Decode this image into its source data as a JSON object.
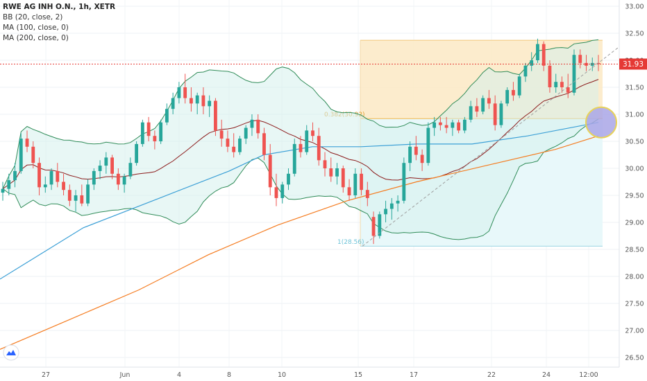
{
  "legend": {
    "title": "RWE AG INH O.N., 1h, XETR",
    "indicators": [
      "BB (20, close, 2)",
      "MA (100, close, 0)",
      "MA (200, close, 0)"
    ]
  },
  "chart_data": {
    "type": "candlestick",
    "price_axis": {
      "ylim": [
        26.4,
        33.1
      ],
      "ticks": [
        "26.50",
        "27.00",
        "27.50",
        "28.00",
        "28.50",
        "29.00",
        "29.50",
        "30.00",
        "30.50",
        "31.00",
        "31.50",
        "32.00",
        "32.50",
        "33.00"
      ],
      "last_price_label": "31.93"
    },
    "time_axis": {
      "ticks": [
        "27",
        "Jun",
        "4",
        "8",
        "10",
        "15",
        "17",
        "22",
        "24",
        "12:00"
      ]
    },
    "fibonacci": {
      "level_0382_label": "0.382(30.92)",
      "level_1_label": "1(28.56)"
    },
    "colors": {
      "up": "#26a69a",
      "down": "#ef5350",
      "bollinger": "#2e8b57",
      "ma20": "#8b1a1a",
      "ma100": "#3a9fd6",
      "ma200": "#f57c20",
      "fib_upper_fill": "#fbe9c4",
      "fib_lower_fill": "#e6f7f9",
      "last_price": "#e53935"
    },
    "candles": [
      {
        "o": 29.55,
        "h": 29.75,
        "l": 29.4,
        "c": 29.62
      },
      {
        "o": 29.62,
        "h": 29.9,
        "l": 29.5,
        "c": 29.78
      },
      {
        "o": 29.78,
        "h": 30.1,
        "l": 29.65,
        "c": 29.95
      },
      {
        "o": 29.95,
        "h": 30.65,
        "l": 29.9,
        "c": 30.55
      },
      {
        "o": 30.55,
        "h": 30.7,
        "l": 30.3,
        "c": 30.4
      },
      {
        "o": 30.4,
        "h": 30.5,
        "l": 30.0,
        "c": 30.1
      },
      {
        "o": 30.1,
        "h": 30.2,
        "l": 29.5,
        "c": 29.65
      },
      {
        "o": 29.65,
        "h": 29.85,
        "l": 29.55,
        "c": 29.7
      },
      {
        "o": 29.7,
        "h": 30.0,
        "l": 29.6,
        "c": 29.95
      },
      {
        "o": 29.95,
        "h": 30.1,
        "l": 29.65,
        "c": 29.75
      },
      {
        "o": 29.75,
        "h": 29.9,
        "l": 29.5,
        "c": 29.6
      },
      {
        "o": 29.6,
        "h": 29.7,
        "l": 29.3,
        "c": 29.4
      },
      {
        "o": 29.4,
        "h": 29.6,
        "l": 29.2,
        "c": 29.5
      },
      {
        "o": 29.5,
        "h": 29.7,
        "l": 29.3,
        "c": 29.35
      },
      {
        "o": 29.35,
        "h": 29.8,
        "l": 29.3,
        "c": 29.7
      },
      {
        "o": 29.7,
        "h": 30.0,
        "l": 29.6,
        "c": 29.95
      },
      {
        "o": 29.95,
        "h": 30.15,
        "l": 29.8,
        "c": 30.05
      },
      {
        "o": 30.05,
        "h": 30.3,
        "l": 29.9,
        "c": 30.2
      },
      {
        "o": 30.2,
        "h": 30.25,
        "l": 29.8,
        "c": 29.9
      },
      {
        "o": 29.9,
        "h": 30.0,
        "l": 29.6,
        "c": 29.7
      },
      {
        "o": 29.7,
        "h": 29.9,
        "l": 29.55,
        "c": 29.85
      },
      {
        "o": 29.85,
        "h": 30.2,
        "l": 29.8,
        "c": 30.1
      },
      {
        "o": 30.1,
        "h": 30.5,
        "l": 30.05,
        "c": 30.45
      },
      {
        "o": 30.45,
        "h": 30.9,
        "l": 30.4,
        "c": 30.85
      },
      {
        "o": 30.85,
        "h": 30.95,
        "l": 30.5,
        "c": 30.6
      },
      {
        "o": 30.6,
        "h": 30.7,
        "l": 30.35,
        "c": 30.5
      },
      {
        "o": 30.5,
        "h": 30.9,
        "l": 30.45,
        "c": 30.85
      },
      {
        "o": 30.85,
        "h": 31.2,
        "l": 30.8,
        "c": 31.1
      },
      {
        "o": 31.1,
        "h": 31.4,
        "l": 31.0,
        "c": 31.3
      },
      {
        "o": 31.3,
        "h": 31.6,
        "l": 31.2,
        "c": 31.5
      },
      {
        "o": 31.5,
        "h": 31.75,
        "l": 31.2,
        "c": 31.3
      },
      {
        "o": 31.3,
        "h": 31.5,
        "l": 31.05,
        "c": 31.2
      },
      {
        "o": 31.2,
        "h": 31.4,
        "l": 31.0,
        "c": 31.35
      },
      {
        "o": 31.35,
        "h": 31.5,
        "l": 31.0,
        "c": 31.15
      },
      {
        "o": 31.15,
        "h": 31.35,
        "l": 30.95,
        "c": 31.25
      },
      {
        "o": 31.25,
        "h": 31.3,
        "l": 30.6,
        "c": 30.7
      },
      {
        "o": 30.7,
        "h": 30.9,
        "l": 30.4,
        "c": 30.55
      },
      {
        "o": 30.55,
        "h": 30.7,
        "l": 30.3,
        "c": 30.4
      },
      {
        "o": 30.4,
        "h": 30.65,
        "l": 30.2,
        "c": 30.3
      },
      {
        "o": 30.3,
        "h": 30.6,
        "l": 30.25,
        "c": 30.55
      },
      {
        "o": 30.55,
        "h": 30.8,
        "l": 30.45,
        "c": 30.75
      },
      {
        "o": 30.75,
        "h": 31.0,
        "l": 30.6,
        "c": 30.9
      },
      {
        "o": 30.9,
        "h": 31.0,
        "l": 30.55,
        "c": 30.65
      },
      {
        "o": 30.65,
        "h": 30.75,
        "l": 30.15,
        "c": 30.25
      },
      {
        "o": 30.25,
        "h": 30.45,
        "l": 29.5,
        "c": 29.65
      },
      {
        "o": 29.65,
        "h": 29.9,
        "l": 29.3,
        "c": 29.45
      },
      {
        "o": 29.45,
        "h": 29.75,
        "l": 29.35,
        "c": 29.7
      },
      {
        "o": 29.7,
        "h": 30.0,
        "l": 29.6,
        "c": 29.9
      },
      {
        "o": 29.9,
        "h": 30.55,
        "l": 29.85,
        "c": 30.45
      },
      {
        "o": 30.45,
        "h": 30.6,
        "l": 30.2,
        "c": 30.3
      },
      {
        "o": 30.3,
        "h": 30.8,
        "l": 30.25,
        "c": 30.7
      },
      {
        "o": 30.7,
        "h": 30.85,
        "l": 30.5,
        "c": 30.6
      },
      {
        "o": 30.6,
        "h": 30.75,
        "l": 30.05,
        "c": 30.15
      },
      {
        "o": 30.15,
        "h": 30.3,
        "l": 29.85,
        "c": 30.0
      },
      {
        "o": 30.0,
        "h": 30.2,
        "l": 29.75,
        "c": 29.85
      },
      {
        "o": 29.85,
        "h": 30.1,
        "l": 29.7,
        "c": 30.0
      },
      {
        "o": 30.0,
        "h": 30.05,
        "l": 29.55,
        "c": 29.65
      },
      {
        "o": 29.65,
        "h": 29.8,
        "l": 29.4,
        "c": 29.5
      },
      {
        "o": 29.5,
        "h": 30.0,
        "l": 29.45,
        "c": 29.9
      },
      {
        "o": 29.9,
        "h": 30.0,
        "l": 29.5,
        "c": 29.6
      },
      {
        "o": 29.6,
        "h": 29.75,
        "l": 29.3,
        "c": 29.45
      },
      {
        "o": 29.1,
        "h": 29.2,
        "l": 28.6,
        "c": 28.75
      },
      {
        "o": 28.75,
        "h": 29.2,
        "l": 28.7,
        "c": 29.15
      },
      {
        "o": 29.15,
        "h": 29.4,
        "l": 29.0,
        "c": 29.25
      },
      {
        "o": 29.25,
        "h": 29.45,
        "l": 29.05,
        "c": 29.35
      },
      {
        "o": 29.35,
        "h": 29.5,
        "l": 29.2,
        "c": 29.4
      },
      {
        "o": 29.4,
        "h": 30.2,
        "l": 29.35,
        "c": 30.1
      },
      {
        "o": 30.1,
        "h": 30.5,
        "l": 29.95,
        "c": 30.4
      },
      {
        "o": 30.4,
        "h": 30.6,
        "l": 30.15,
        "c": 30.25
      },
      {
        "o": 30.25,
        "h": 30.35,
        "l": 29.95,
        "c": 30.1
      },
      {
        "o": 30.1,
        "h": 30.85,
        "l": 30.05,
        "c": 30.75
      },
      {
        "o": 30.75,
        "h": 30.95,
        "l": 30.6,
        "c": 30.85
      },
      {
        "o": 30.85,
        "h": 30.95,
        "l": 30.7,
        "c": 30.8
      },
      {
        "o": 30.8,
        "h": 30.95,
        "l": 30.65,
        "c": 30.75
      },
      {
        "o": 30.75,
        "h": 30.9,
        "l": 30.6,
        "c": 30.85
      },
      {
        "o": 30.85,
        "h": 30.9,
        "l": 30.65,
        "c": 30.7
      },
      {
        "o": 30.7,
        "h": 30.95,
        "l": 30.65,
        "c": 30.9
      },
      {
        "o": 30.9,
        "h": 31.25,
        "l": 30.85,
        "c": 31.15
      },
      {
        "o": 31.15,
        "h": 31.3,
        "l": 30.95,
        "c": 31.05
      },
      {
        "o": 31.05,
        "h": 31.35,
        "l": 31.0,
        "c": 31.3
      },
      {
        "o": 31.3,
        "h": 31.45,
        "l": 31.1,
        "c": 31.2
      },
      {
        "o": 31.2,
        "h": 31.35,
        "l": 30.7,
        "c": 30.8
      },
      {
        "o": 30.8,
        "h": 31.25,
        "l": 30.75,
        "c": 31.2
      },
      {
        "o": 31.2,
        "h": 31.5,
        "l": 31.15,
        "c": 31.45
      },
      {
        "o": 31.45,
        "h": 31.6,
        "l": 31.25,
        "c": 31.35
      },
      {
        "o": 31.35,
        "h": 31.75,
        "l": 31.3,
        "c": 31.7
      },
      {
        "o": 31.7,
        "h": 31.95,
        "l": 31.6,
        "c": 31.9
      },
      {
        "o": 31.9,
        "h": 32.15,
        "l": 31.8,
        "c": 32.0
      },
      {
        "o": 32.0,
        "h": 32.4,
        "l": 31.95,
        "c": 32.3
      },
      {
        "o": 32.3,
        "h": 32.35,
        "l": 31.8,
        "c": 31.9
      },
      {
        "o": 31.9,
        "h": 32.0,
        "l": 31.4,
        "c": 31.5
      },
      {
        "o": 31.5,
        "h": 31.75,
        "l": 31.4,
        "c": 31.6
      },
      {
        "o": 31.6,
        "h": 31.7,
        "l": 31.4,
        "c": 31.5
      },
      {
        "o": 31.5,
        "h": 31.75,
        "l": 31.3,
        "c": 31.4
      },
      {
        "o": 31.4,
        "h": 32.2,
        "l": 31.35,
        "c": 32.1
      },
      {
        "o": 32.1,
        "h": 32.2,
        "l": 31.85,
        "c": 31.95
      },
      {
        "o": 31.95,
        "h": 32.1,
        "l": 31.8,
        "c": 31.9
      },
      {
        "o": 31.9,
        "h": 32.05,
        "l": 31.8,
        "c": 31.95
      },
      {
        "o": 31.95,
        "h": 32.1,
        "l": 31.8,
        "c": 31.93
      }
    ]
  }
}
